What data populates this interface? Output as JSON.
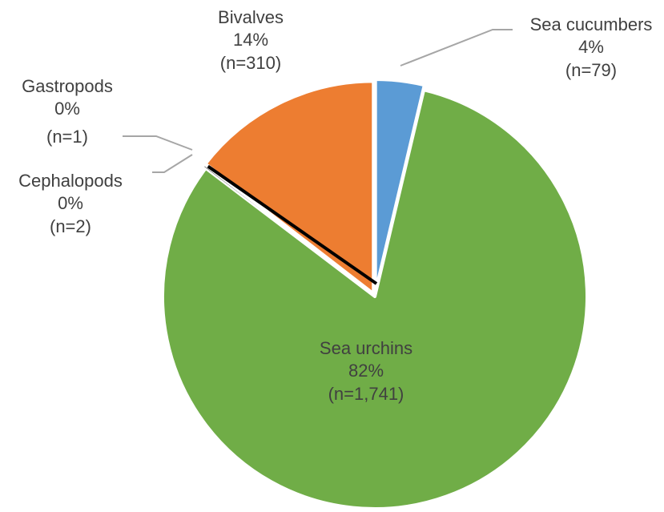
{
  "chart_data": {
    "type": "pie",
    "title": "",
    "slices": [
      {
        "name": "Sea cucumbers",
        "percent": "4%",
        "count": "(n=79)",
        "value": 79,
        "color": "#5B9BD5"
      },
      {
        "name": "Sea urchins",
        "percent": "82%",
        "count": "(n=1,741)",
        "value": 1741,
        "color": "#70AD47"
      },
      {
        "name": "Cephalopods",
        "percent": "0%",
        "count": "(n=2)",
        "value": 2,
        "color": "#000000"
      },
      {
        "name": "Gastropods",
        "percent": "0%",
        "count": "(n=1)",
        "value": 1,
        "color": "#000000"
      },
      {
        "name": "Bivalves",
        "percent": "14%",
        "count": "(n=310)",
        "value": 310,
        "color": "#ED7D31"
      }
    ],
    "legend": "none",
    "leader_line_color": "#A6A6A6"
  }
}
